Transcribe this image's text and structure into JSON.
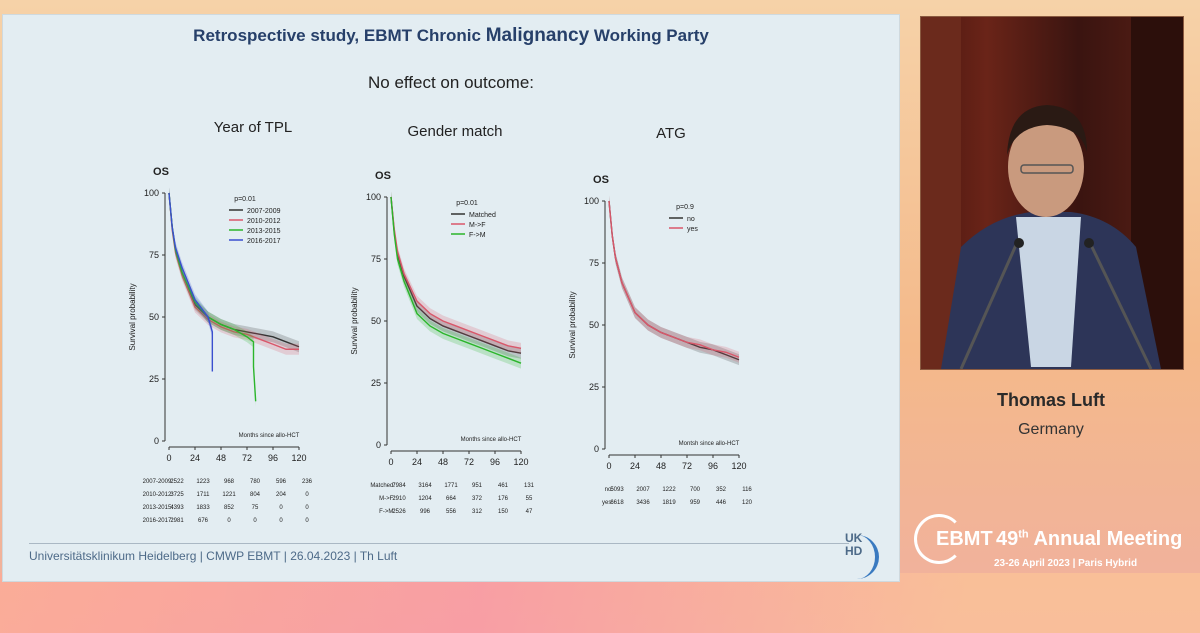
{
  "slide": {
    "title_a": "Retrospective study, EBMT Chronic ",
    "title_b": "Malignancy",
    "title_c": " Working Party",
    "subtitle": "No effect on outcome:",
    "footer": "Universitätsklinikum Heidelberg | CMWP EBMT | 26.04.2023 | Th Luft",
    "logo_line1": "UK",
    "logo_line2": "HD"
  },
  "speaker": {
    "name": "Thomas Luft",
    "country": "Germany"
  },
  "event": {
    "brand": "EBMT",
    "edition": "49",
    "edition_sup": "th",
    "name": "Annual Meeting",
    "dates": "23-26 April 2023  |  Paris Hybrid"
  },
  "chart_data": [
    {
      "type": "line",
      "title": "Year of TPL",
      "panel_label": "OS",
      "ylabel": "Survival probability",
      "xlabel": "Months since allo-HCT",
      "pvalue": "p=0.01",
      "xlim": [
        0,
        120
      ],
      "ylim": [
        0,
        100
      ],
      "xticks": [
        0,
        24,
        48,
        72,
        96,
        120
      ],
      "yticks": [
        0,
        25,
        50,
        75,
        100
      ],
      "legend_position": "top-right",
      "series": [
        {
          "name": "2007-2009",
          "color": "#333333",
          "x": [
            0,
            3,
            6,
            12,
            24,
            36,
            48,
            60,
            72,
            84,
            96,
            108,
            120
          ],
          "y": [
            100,
            86,
            77,
            68,
            55,
            50,
            47,
            45,
            44,
            43,
            42,
            40,
            38
          ]
        },
        {
          "name": "2010-2012",
          "color": "#d9576a",
          "x": [
            0,
            3,
            6,
            12,
            24,
            36,
            48,
            60,
            72,
            84,
            96,
            108,
            120
          ],
          "y": [
            100,
            85,
            76,
            67,
            54,
            49,
            46,
            44,
            43,
            41,
            39,
            37,
            37
          ]
        },
        {
          "name": "2013-2015",
          "color": "#2bb52b",
          "x": [
            0,
            3,
            6,
            12,
            24,
            36,
            48,
            60,
            72,
            78,
            78,
            80
          ],
          "y": [
            100,
            86,
            77,
            68,
            56,
            50,
            47,
            45,
            42,
            40,
            30,
            16
          ]
        },
        {
          "name": "2016-2017",
          "color": "#3a4fcf",
          "x": [
            0,
            3,
            6,
            12,
            24,
            36,
            40,
            40
          ],
          "y": [
            100,
            86,
            78,
            70,
            57,
            50,
            44,
            28
          ]
        }
      ],
      "risk_table": [
        {
          "label": "2007-2009:",
          "values": [
            "2522",
            "1223",
            "968",
            "780",
            "596",
            "236"
          ]
        },
        {
          "label": "2010-2012:",
          "values": [
            "3725",
            "1711",
            "1221",
            "804",
            "204",
            "0"
          ]
        },
        {
          "label": "2013-2015:",
          "values": [
            "4393",
            "1833",
            "852",
            "75",
            "0",
            "0"
          ]
        },
        {
          "label": "2016-2017:",
          "values": [
            "2981",
            "676",
            "0",
            "0",
            "0",
            "0"
          ]
        }
      ]
    },
    {
      "type": "line",
      "title": "Gender match",
      "panel_label": "OS",
      "ylabel": "Survival probability",
      "xlabel": "Months since allo-HCT",
      "pvalue": "p=0.01",
      "xlim": [
        0,
        120
      ],
      "ylim": [
        0,
        100
      ],
      "xticks": [
        0,
        24,
        48,
        72,
        96,
        120
      ],
      "yticks": [
        0,
        25,
        50,
        75,
        100
      ],
      "legend_position": "top-right",
      "series": [
        {
          "name": "Matched",
          "color": "#333333",
          "x": [
            0,
            3,
            6,
            12,
            24,
            36,
            48,
            60,
            72,
            84,
            96,
            108,
            120
          ],
          "y": [
            100,
            86,
            77,
            68,
            56,
            51,
            48,
            46,
            44,
            42,
            40,
            38,
            37
          ]
        },
        {
          "name": "M->F",
          "color": "#d9576a",
          "x": [
            0,
            3,
            6,
            12,
            24,
            36,
            48,
            60,
            72,
            84,
            96,
            108,
            120
          ],
          "y": [
            100,
            87,
            78,
            69,
            58,
            53,
            50,
            48,
            46,
            44,
            42,
            40,
            39
          ]
        },
        {
          "name": "F->M",
          "color": "#2bb52b",
          "x": [
            0,
            3,
            6,
            12,
            24,
            36,
            48,
            60,
            72,
            84,
            96,
            108,
            120
          ],
          "y": [
            100,
            85,
            75,
            66,
            53,
            48,
            45,
            43,
            41,
            39,
            37,
            35,
            33
          ]
        }
      ],
      "risk_table": [
        {
          "label": "Matched:",
          "values": [
            "7984",
            "3164",
            "1771",
            "951",
            "461",
            "131"
          ]
        },
        {
          "label": "M->F:",
          "values": [
            "2910",
            "1204",
            "664",
            "372",
            "176",
            "55"
          ]
        },
        {
          "label": "F->M:",
          "values": [
            "2526",
            "996",
            "556",
            "312",
            "150",
            "47"
          ]
        }
      ]
    },
    {
      "type": "line",
      "title": "ATG",
      "panel_label": "OS",
      "ylabel": "Survival probability",
      "xlabel": "Montsh since allo-HCT",
      "pvalue": "p=0.9",
      "xlim": [
        0,
        120
      ],
      "ylim": [
        0,
        100
      ],
      "xticks": [
        0,
        24,
        48,
        72,
        96,
        120
      ],
      "yticks": [
        0,
        25,
        50,
        75,
        100
      ],
      "legend_position": "top-right",
      "series": [
        {
          "name": "no",
          "color": "#333333",
          "x": [
            0,
            3,
            6,
            12,
            24,
            36,
            48,
            60,
            72,
            84,
            96,
            108,
            120
          ],
          "y": [
            100,
            86,
            77,
            67,
            55,
            50,
            47,
            45,
            43,
            41,
            40,
            38,
            36
          ]
        },
        {
          "name": "yes",
          "color": "#d9576a",
          "x": [
            0,
            3,
            6,
            12,
            24,
            36,
            48,
            60,
            72,
            84,
            96,
            108,
            120
          ],
          "y": [
            100,
            86,
            77,
            67,
            55,
            50,
            47,
            45,
            43,
            42,
            40,
            39,
            37
          ]
        }
      ],
      "risk_table": [
        {
          "label": "no:",
          "values": [
            "5093",
            "2007",
            "1222",
            "700",
            "352",
            "116"
          ]
        },
        {
          "label": "yes:",
          "values": [
            "6618",
            "3436",
            "1819",
            "959",
            "446",
            "120"
          ]
        }
      ]
    }
  ]
}
